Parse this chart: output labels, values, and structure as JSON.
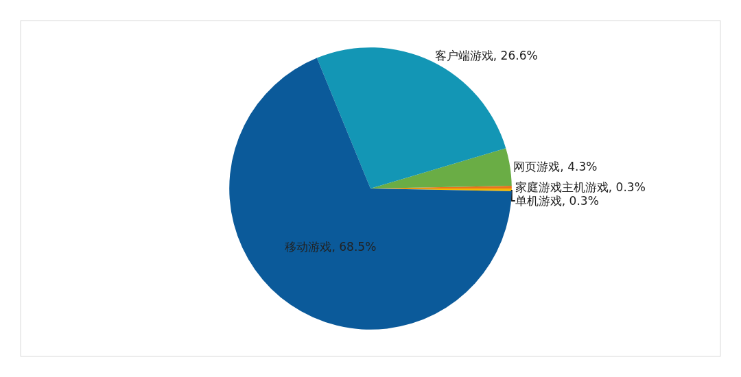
{
  "chart_data": {
    "type": "pie",
    "categories": [
      "单机游戏",
      "家庭游戏主机游戏",
      "网页游戏",
      "客户端游戏",
      "移动游戏"
    ],
    "values": [
      0.3,
      0.3,
      4.3,
      26.6,
      68.5
    ],
    "value_labels": [
      "0.3%",
      "0.3%",
      "4.3%",
      "26.6%",
      "68.5%"
    ],
    "colors": [
      "#f2b705",
      "#e8731e",
      "#6aad45",
      "#1396b5",
      "#0b5a9a"
    ],
    "legend": false
  }
}
